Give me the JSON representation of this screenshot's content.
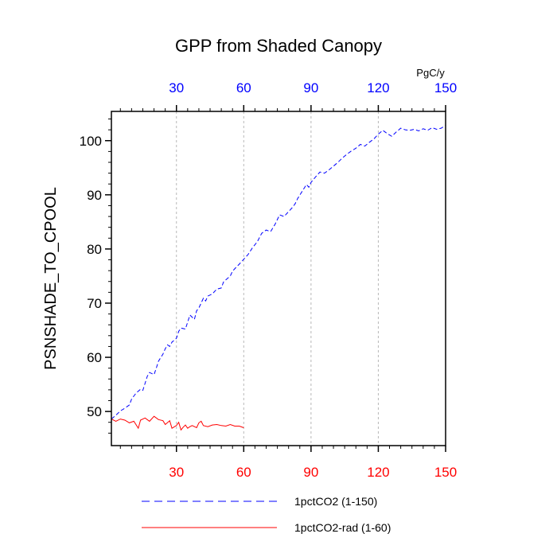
{
  "chart_data": {
    "type": "line",
    "title": "GPP from Shaded Canopy",
    "ylabel": "PSNSHADE_TO_CPOOL",
    "top_axis_unit": "PgC/y",
    "xlim": [
      1,
      150
    ],
    "ylim": [
      43.7,
      105.4
    ],
    "grid": "vertical dashed at x ticks",
    "x_ticks": [
      30,
      60,
      90,
      120,
      150
    ],
    "x_tick_labels": [
      "30",
      "60",
      "90",
      "120",
      "150"
    ],
    "y_ticks": [
      50,
      60,
      70,
      80,
      90,
      100
    ],
    "y_tick_labels": [
      "50",
      "60",
      "70",
      "80",
      "90",
      "100"
    ],
    "bottom_tick_color": "#ff0000",
    "top_tick_color": "#0000ff",
    "legend_position": "bottom",
    "series": [
      {
        "name": "1pctCO2 (1-150)",
        "color": "#0000ff",
        "style": "dashed",
        "x": [
          1,
          3,
          5,
          7,
          9,
          10,
          12,
          14,
          15,
          17,
          18,
          20,
          21,
          22,
          24,
          25,
          26,
          27,
          28,
          30,
          31,
          32,
          34,
          36,
          38,
          39,
          40,
          42,
          43,
          44,
          46,
          48,
          50,
          51,
          52,
          54,
          55,
          57,
          58,
          60,
          62,
          64,
          66,
          68,
          70,
          72,
          74,
          76,
          78,
          80,
          82,
          83,
          84,
          86,
          88,
          89,
          90,
          92,
          94,
          96,
          98,
          100,
          102,
          104,
          106,
          108,
          110,
          112,
          114,
          116,
          118,
          120,
          122,
          124,
          126,
          128,
          130,
          132,
          134,
          136,
          138,
          140,
          142,
          144,
          146,
          148,
          150
        ],
        "values": [
          48.6,
          49.3,
          50.1,
          50.6,
          51.2,
          52.3,
          53.4,
          54.1,
          53.9,
          56.5,
          57.2,
          56.8,
          58.0,
          59.3,
          60.6,
          61.6,
          62.3,
          62.0,
          62.8,
          63.5,
          64.8,
          65.4,
          65.2,
          67.8,
          67.0,
          68.6,
          69.1,
          70.9,
          70.4,
          71.3,
          71.7,
          72.6,
          72.8,
          73.9,
          74.3,
          75.0,
          75.9,
          76.8,
          77.2,
          78.1,
          79.0,
          80.3,
          81.3,
          82.9,
          83.5,
          83.2,
          84.6,
          86.3,
          86.0,
          86.9,
          87.8,
          88.4,
          89.3,
          90.6,
          91.9,
          91.4,
          92.3,
          93.3,
          94.2,
          94.0,
          94.6,
          95.3,
          96.0,
          96.8,
          97.5,
          98.1,
          98.6,
          99.3,
          99.0,
          99.7,
          100.3,
          101.2,
          101.9,
          101.3,
          100.8,
          101.6,
          102.3,
          102.0,
          101.9,
          102.1,
          101.8,
          102.2,
          101.9,
          102.4,
          102.1,
          102.3,
          102.8
        ]
      },
      {
        "name": "1pctCO2-rad (1-60)",
        "color": "#ff0000",
        "style": "solid",
        "x": [
          1,
          3,
          5,
          7,
          9,
          11,
          13,
          14,
          16,
          18,
          20,
          22,
          24,
          25,
          27,
          28,
          30,
          31,
          32,
          33,
          34,
          35,
          36,
          37,
          39,
          40,
          41,
          42,
          44,
          46,
          48,
          50,
          52,
          54,
          56,
          58,
          60
        ],
        "values": [
          48.6,
          48.2,
          48.6,
          48.4,
          47.9,
          48.2,
          46.9,
          48.4,
          48.8,
          48.2,
          49.1,
          48.5,
          48.3,
          47.6,
          48.3,
          46.9,
          47.4,
          48.0,
          46.6,
          47.1,
          47.5,
          46.9,
          47.2,
          47.4,
          47.0,
          47.9,
          48.2,
          47.4,
          47.2,
          47.5,
          47.6,
          47.4,
          47.3,
          47.6,
          47.3,
          47.3,
          47.0
        ]
      }
    ]
  }
}
